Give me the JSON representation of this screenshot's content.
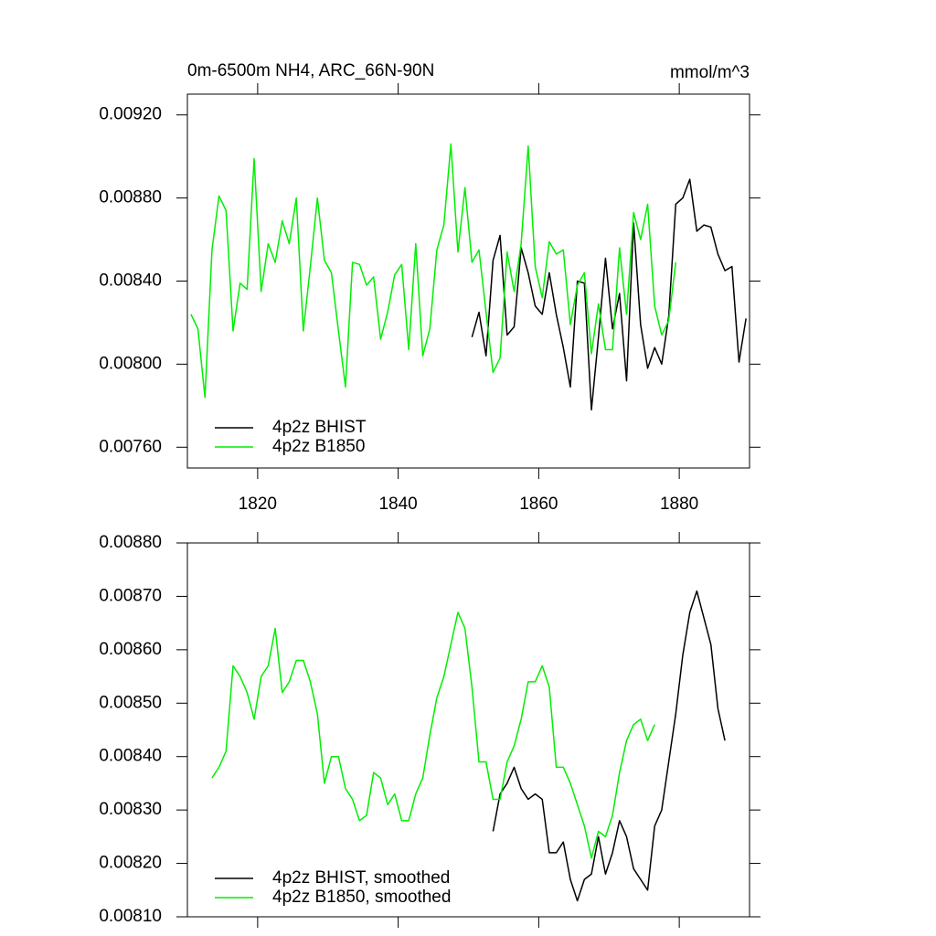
{
  "chart_data": [
    {
      "type": "line",
      "title": "0m-6500m NH4, ARC_66N-90N",
      "units_label": "mmol/m^3",
      "xlim": [
        1810,
        1890
      ],
      "xticks": [
        1820,
        1840,
        1860,
        1880
      ],
      "ylim": [
        0.0075,
        0.0093
      ],
      "yticks": [
        {
          "value": 0.0076,
          "label": "0.00760"
        },
        {
          "value": 0.008,
          "label": "0.00800"
        },
        {
          "value": 0.0084,
          "label": "0.00840"
        },
        {
          "value": 0.0088,
          "label": "0.00880"
        },
        {
          "value": 0.0092,
          "label": "0.00920"
        }
      ],
      "series": [
        {
          "name": "4p2z BHIST",
          "color": "#000000",
          "x": [
            1850.5,
            1851.5,
            1852.5,
            1853.5,
            1854.5,
            1855.5,
            1856.5,
            1857.5,
            1858.5,
            1859.5,
            1860.5,
            1861.5,
            1862.5,
            1863.5,
            1864.5,
            1865.5,
            1866.5,
            1867.5,
            1868.5,
            1869.5,
            1870.5,
            1871.5,
            1872.5,
            1873.5,
            1874.5,
            1875.5,
            1876.5,
            1877.5,
            1878.5,
            1879.5,
            1880.5,
            1881.5,
            1882.5,
            1883.5,
            1884.5,
            1885.5,
            1886.5,
            1887.5,
            1888.5,
            1889.5
          ],
          "values": [
            0.00813,
            0.00825,
            0.00804,
            0.0085,
            0.00862,
            0.00814,
            0.00818,
            0.00856,
            0.00844,
            0.00828,
            0.00824,
            0.00844,
            0.00824,
            0.00808,
            0.00789,
            0.0084,
            0.00839,
            0.00778,
            0.00813,
            0.00851,
            0.00817,
            0.00834,
            0.00792,
            0.00868,
            0.00819,
            0.00798,
            0.00808,
            0.008,
            0.00823,
            0.00877,
            0.0088,
            0.00889,
            0.00864,
            0.00867,
            0.00866,
            0.00853,
            0.00845,
            0.00847,
            0.00801,
            0.00822
          ]
        },
        {
          "name": "4p2z B1850",
          "color": "#00ee00",
          "x": [
            1810.5,
            1811.5,
            1812.5,
            1813.5,
            1814.5,
            1815.5,
            1816.5,
            1817.5,
            1818.5,
            1819.5,
            1820.5,
            1821.5,
            1822.5,
            1823.5,
            1824.5,
            1825.5,
            1826.5,
            1827.5,
            1828.5,
            1829.5,
            1830.5,
            1831.5,
            1832.5,
            1833.5,
            1834.5,
            1835.5,
            1836.5,
            1837.5,
            1838.5,
            1839.5,
            1840.5,
            1841.5,
            1842.5,
            1843.5,
            1844.5,
            1845.5,
            1846.5,
            1847.5,
            1848.5,
            1849.5,
            1850.5,
            1851.5,
            1852.5,
            1853.5,
            1854.5,
            1855.5,
            1856.5,
            1857.5,
            1858.5,
            1859.5,
            1860.5,
            1861.5,
            1862.5,
            1863.5,
            1864.5,
            1865.5,
            1866.5,
            1867.5,
            1868.5,
            1869.5,
            1870.5,
            1871.5,
            1872.5,
            1873.5,
            1874.5,
            1875.5,
            1876.5,
            1877.5,
            1878.5,
            1879.5
          ],
          "values": [
            0.00824,
            0.00817,
            0.00784,
            0.00855,
            0.00881,
            0.00874,
            0.00816,
            0.00839,
            0.00836,
            0.00899,
            0.00835,
            0.00858,
            0.00849,
            0.00869,
            0.00858,
            0.0088,
            0.00816,
            0.00847,
            0.0088,
            0.0085,
            0.00844,
            0.00816,
            0.00789,
            0.00849,
            0.00848,
            0.00838,
            0.00842,
            0.00812,
            0.00825,
            0.00843,
            0.00848,
            0.00807,
            0.00858,
            0.00804,
            0.00817,
            0.00855,
            0.00867,
            0.00906,
            0.00854,
            0.00885,
            0.00849,
            0.00855,
            0.00825,
            0.00796,
            0.00803,
            0.00854,
            0.00835,
            0.00858,
            0.00905,
            0.00847,
            0.00832,
            0.00859,
            0.00853,
            0.00855,
            0.00819,
            0.00838,
            0.00844,
            0.00805,
            0.00829,
            0.00807,
            0.00807,
            0.00856,
            0.00824,
            0.00873,
            0.0086,
            0.00877,
            0.00828,
            0.00814,
            0.00821,
            0.00849
          ]
        }
      ]
    },
    {
      "type": "line",
      "xlim": [
        1810,
        1890
      ],
      "xticks": [
        1820,
        1840,
        1860,
        1880
      ],
      "ylim": [
        0.0081,
        0.0088
      ],
      "yticks": [
        {
          "value": 0.0081,
          "label": "0.00810"
        },
        {
          "value": 0.0082,
          "label": "0.00820"
        },
        {
          "value": 0.0083,
          "label": "0.00830"
        },
        {
          "value": 0.0084,
          "label": "0.00840"
        },
        {
          "value": 0.0085,
          "label": "0.00850"
        },
        {
          "value": 0.0086,
          "label": "0.00860"
        },
        {
          "value": 0.0087,
          "label": "0.00870"
        },
        {
          "value": 0.0088,
          "label": "0.00880"
        }
      ],
      "series": [
        {
          "name": "4p2z BHIST, smoothed",
          "color": "#000000",
          "x": [
            1853.5,
            1854.5,
            1855.5,
            1856.5,
            1857.5,
            1858.5,
            1859.5,
            1860.5,
            1861.5,
            1862.5,
            1863.5,
            1864.5,
            1865.5,
            1866.5,
            1867.5,
            1868.5,
            1869.5,
            1870.5,
            1871.5,
            1872.5,
            1873.5,
            1874.5,
            1875.5,
            1876.5,
            1877.5,
            1878.5,
            1879.5,
            1880.5,
            1881.5,
            1882.5,
            1883.5,
            1884.5,
            1885.5,
            1886.5
          ],
          "values": [
            0.00826,
            0.00833,
            0.00835,
            0.00838,
            0.00834,
            0.00832,
            0.00833,
            0.00832,
            0.00822,
            0.00822,
            0.00824,
            0.00817,
            0.00813,
            0.00817,
            0.00818,
            0.00825,
            0.00818,
            0.00822,
            0.00828,
            0.00825,
            0.00819,
            0.00817,
            0.00815,
            0.00827,
            0.0083,
            0.00839,
            0.00848,
            0.00859,
            0.00867,
            0.00871,
            0.00866,
            0.00861,
            0.00849,
            0.00843
          ]
        },
        {
          "name": "4p2z B1850, smoothed",
          "color": "#00ee00",
          "x": [
            1813.5,
            1814.5,
            1815.5,
            1816.5,
            1817.5,
            1818.5,
            1819.5,
            1820.5,
            1821.5,
            1822.5,
            1823.5,
            1824.5,
            1825.5,
            1826.5,
            1827.5,
            1828.5,
            1829.5,
            1830.5,
            1831.5,
            1832.5,
            1833.5,
            1834.5,
            1835.5,
            1836.5,
            1837.5,
            1838.5,
            1839.5,
            1840.5,
            1841.5,
            1842.5,
            1843.5,
            1844.5,
            1845.5,
            1846.5,
            1847.5,
            1848.5,
            1849.5,
            1850.5,
            1851.5,
            1852.5,
            1853.5,
            1854.5,
            1855.5,
            1856.5,
            1857.5,
            1858.5,
            1859.5,
            1860.5,
            1861.5,
            1862.5,
            1863.5,
            1864.5,
            1865.5,
            1866.5,
            1867.5,
            1868.5,
            1869.5,
            1870.5,
            1871.5,
            1872.5,
            1873.5,
            1874.5,
            1875.5,
            1876.5
          ],
          "values": [
            0.00836,
            0.00838,
            0.00841,
            0.00857,
            0.00855,
            0.00852,
            0.00847,
            0.00855,
            0.00857,
            0.00864,
            0.00852,
            0.00854,
            0.00858,
            0.00858,
            0.00854,
            0.00848,
            0.00835,
            0.0084,
            0.0084,
            0.00834,
            0.00832,
            0.00828,
            0.00829,
            0.00837,
            0.00836,
            0.00831,
            0.00833,
            0.00828,
            0.00828,
            0.00833,
            0.00836,
            0.00844,
            0.00851,
            0.00855,
            0.00861,
            0.00867,
            0.00864,
            0.00853,
            0.00839,
            0.00839,
            0.00832,
            0.00832,
            0.00839,
            0.00842,
            0.00847,
            0.00854,
            0.00854,
            0.00857,
            0.00853,
            0.00838,
            0.00838,
            0.00835,
            0.00831,
            0.00827,
            0.00821,
            0.00826,
            0.00825,
            0.00829,
            0.00837,
            0.00843,
            0.00846,
            0.00847,
            0.00843,
            0.00846
          ]
        }
      ]
    }
  ]
}
